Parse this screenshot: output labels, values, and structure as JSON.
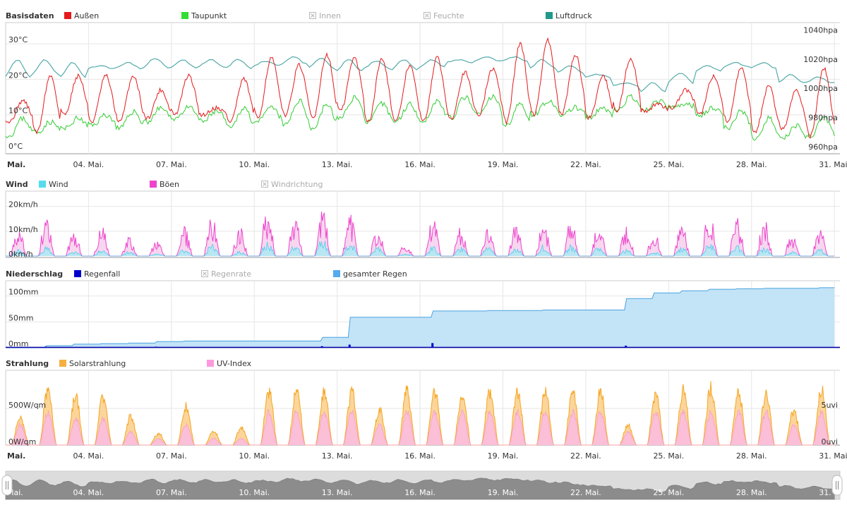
{
  "panels": {
    "basis": {
      "title": "Basisdaten",
      "legend": [
        {
          "label": "Außen",
          "color": "#e41a1c",
          "active": true
        },
        {
          "label": "Taupunkt",
          "color": "#33dd33",
          "active": true
        },
        {
          "label": "Innen",
          "color": "#bbbbbb",
          "active": false
        },
        {
          "label": "Feuchte",
          "color": "#bbbbbb",
          "active": false
        },
        {
          "label": "Luftdruck",
          "color": "#229988",
          "active": true
        }
      ],
      "y_left_ticks": [
        "0°C",
        "10°C",
        "20°C",
        "30°C"
      ],
      "y_right_ticks": [
        "960hpa",
        "980hpa",
        "1000hpa",
        "1020hpa",
        "1040hpa"
      ]
    },
    "wind": {
      "title": "Wind",
      "legend": [
        {
          "label": "Wind",
          "color": "#55ddee",
          "active": true
        },
        {
          "label": "Böen",
          "color": "#ee44cc",
          "active": true
        },
        {
          "label": "Windrichtung",
          "color": "#bbbbbb",
          "active": false
        }
      ],
      "y_ticks": [
        "0km/h",
        "10km/h",
        "20km/h"
      ]
    },
    "rain": {
      "title": "Niederschlag",
      "legend": [
        {
          "label": "Regenfall",
          "color": "#0000cc",
          "active": true
        },
        {
          "label": "Regenrate",
          "color": "#bbbbbb",
          "active": false
        },
        {
          "label": "gesamter Regen",
          "color": "#55aaee",
          "active": true
        }
      ],
      "y_ticks": [
        "0mm",
        "50mm",
        "100mm"
      ]
    },
    "solar": {
      "title": "Strahlung",
      "legend": [
        {
          "label": "Solarstrahlung",
          "color": "#f5b041",
          "active": true
        },
        {
          "label": "UV-Index",
          "color": "#ff99dd",
          "active": true
        }
      ],
      "y_left_ticks": [
        "0W/qm",
        "500W/qm"
      ],
      "y_right_ticks": [
        "0uvi",
        "5uvi"
      ]
    }
  },
  "x_ticks": [
    "Mai.",
    "04. Mai.",
    "07. Mai.",
    "10. Mai.",
    "13. Mai.",
    "16. Mai.",
    "19. Mai.",
    "22. Mai.",
    "25. Mai.",
    "28. Mai.",
    "31. Mai."
  ],
  "chart_data": [
    {
      "type": "line",
      "title": "Basisdaten",
      "x_range": [
        "01. Mai.",
        "31. Mai."
      ],
      "ylim_left": [
        0,
        35
      ],
      "ylim_right": [
        960,
        1045
      ],
      "series": [
        {
          "name": "Außen",
          "unit": "°C",
          "daily_min": [
            8,
            5,
            10,
            8,
            8,
            9,
            10,
            10,
            8,
            9,
            10,
            9,
            11,
            8,
            8,
            8,
            9,
            10,
            8,
            10,
            10,
            9,
            11,
            11,
            12,
            10,
            8,
            5,
            6,
            4
          ],
          "daily_max": [
            14,
            21,
            21,
            21,
            21,
            17,
            21,
            12,
            20,
            26,
            24,
            27,
            26,
            26,
            24,
            26,
            22,
            23,
            30,
            31,
            27,
            21,
            26,
            13,
            17,
            21,
            23,
            18,
            17,
            23
          ]
        },
        {
          "name": "Taupunkt",
          "unit": "°C",
          "daily_min": [
            4,
            5,
            6,
            7,
            6,
            8,
            9,
            8,
            6,
            8,
            7,
            6,
            9,
            8,
            8,
            8,
            9,
            10,
            7,
            10,
            10,
            9,
            11,
            11,
            12,
            10,
            6,
            3,
            3,
            4
          ],
          "daily_max": [
            9,
            8,
            9,
            10,
            11,
            12,
            12,
            11,
            12,
            12,
            14,
            13,
            15,
            13,
            13,
            14,
            15,
            15,
            13,
            14,
            12,
            12,
            15,
            14,
            13,
            12,
            11,
            9,
            7,
            9
          ]
        },
        {
          "name": "Luftdruck",
          "unit": "hpa",
          "daily_min": [
            1010,
            1012,
            1010,
            1016,
            1016,
            1016,
            1016,
            1017,
            1016,
            1018,
            1019,
            1016,
            1014,
            1016,
            1015,
            1017,
            1020,
            1021,
            1021,
            1016,
            1013,
            1010,
            1004,
            1000,
            1006,
            1014,
            1017,
            1016,
            1006,
            1006
          ],
          "daily_max": [
            1022,
            1022,
            1020,
            1018,
            1020,
            1023,
            1022,
            1022,
            1022,
            1021,
            1024,
            1023,
            1022,
            1021,
            1022,
            1022,
            1022,
            1024,
            1024,
            1022,
            1018,
            1012,
            1006,
            1006,
            1013,
            1018,
            1020,
            1020,
            1012,
            1010
          ]
        }
      ]
    },
    {
      "type": "area",
      "title": "Wind",
      "ylim": [
        0,
        25
      ],
      "series": [
        {
          "name": "Wind",
          "unit": "km/h",
          "daily_max": [
            3,
            4,
            2,
            3,
            2,
            1,
            3,
            5,
            2,
            6,
            5,
            8,
            6,
            4,
            1,
            4,
            4,
            4,
            4,
            5,
            5,
            4,
            3,
            2,
            4,
            6,
            5,
            4,
            2,
            3
          ]
        },
        {
          "name": "Böen",
          "unit": "km/h",
          "daily_max": [
            12,
            15,
            11,
            13,
            8,
            6,
            12,
            16,
            12,
            19,
            16,
            20,
            17,
            12,
            5,
            17,
            12,
            14,
            13,
            14,
            15,
            14,
            13,
            10,
            13,
            19,
            16,
            15,
            9,
            12
          ]
        }
      ]
    },
    {
      "type": "area",
      "title": "Niederschlag",
      "ylim": [
        0,
        120
      ],
      "series": [
        {
          "name": "gesamter Regen",
          "unit": "mm",
          "daily_end": [
            0,
            4,
            7,
            8,
            9,
            12,
            13,
            13,
            13,
            13,
            13,
            20,
            59,
            59,
            59,
            71,
            71,
            72,
            72,
            73,
            73,
            73,
            95,
            106,
            110,
            113,
            114,
            115,
            115,
            116
          ]
        },
        {
          "name": "Regenfall",
          "unit": "mm",
          "daily_max": [
            0,
            2,
            1,
            0,
            0,
            2,
            0,
            0,
            0,
            0,
            0,
            3,
            6,
            0,
            0,
            9,
            0,
            0,
            0,
            0,
            0,
            1,
            4,
            0,
            1,
            0,
            0,
            0,
            0,
            0
          ]
        }
      ]
    },
    {
      "type": "area",
      "title": "Strahlung",
      "ylim_left": [
        0,
        1000
      ],
      "ylim_right": [
        0,
        10
      ],
      "series": [
        {
          "name": "Solarstrahlung",
          "unit": "W/qm",
          "daily_max": [
            440,
            880,
            750,
            760,
            440,
            180,
            600,
            220,
            280,
            820,
            830,
            830,
            820,
            540,
            830,
            830,
            830,
            830,
            830,
            820,
            830,
            830,
            300,
            800,
            860,
            900,
            830,
            820,
            530,
            850
          ]
        },
        {
          "name": "UV-Index",
          "unit": "uvi",
          "daily_max": [
            3,
            5,
            4,
            4,
            2,
            1,
            3,
            1,
            1,
            5,
            5,
            5,
            5,
            3,
            5,
            5,
            5,
            5,
            5,
            5,
            5,
            5,
            2,
            5,
            5,
            5,
            5,
            5,
            3,
            5
          ]
        }
      ]
    }
  ]
}
